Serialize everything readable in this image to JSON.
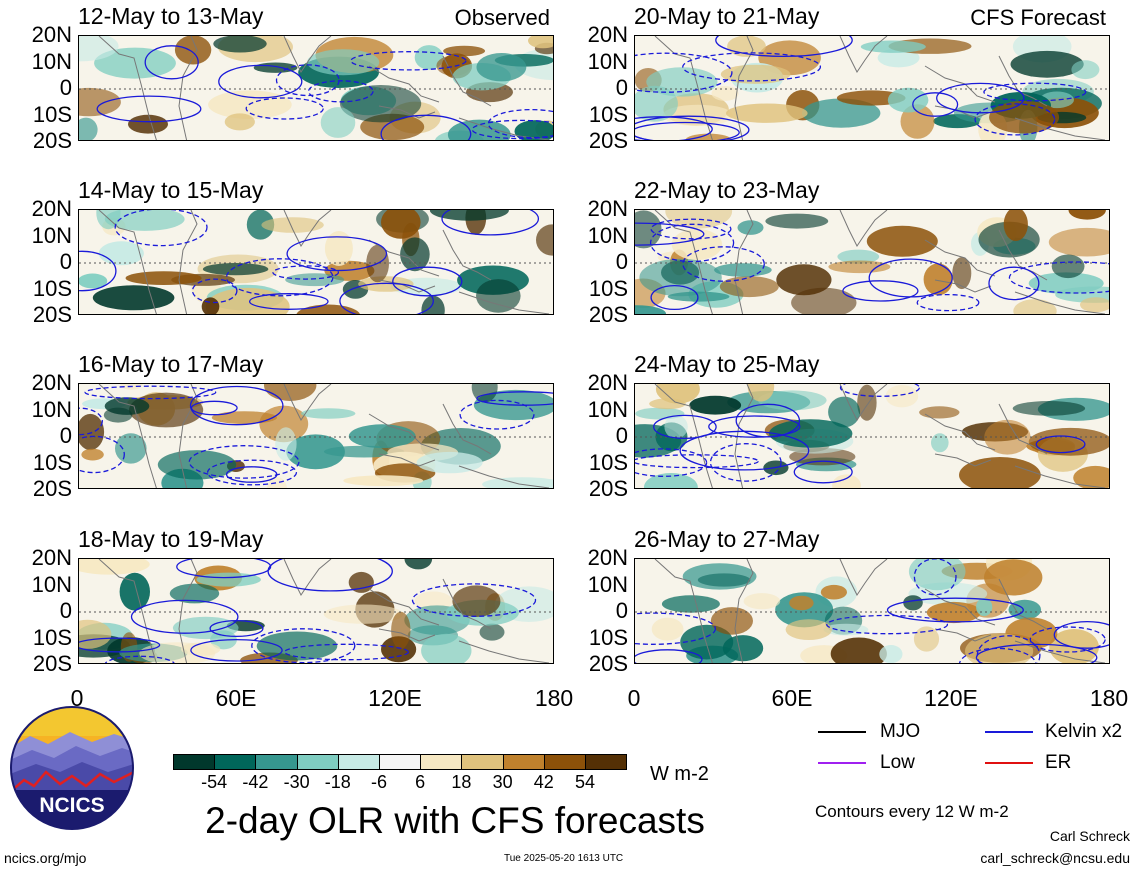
{
  "panels": [
    {
      "title": "12-May to 13-May",
      "tag": "Observed",
      "seed": 1
    },
    {
      "title": "14-May to 15-May",
      "tag": "",
      "seed": 2
    },
    {
      "title": "16-May to 17-May",
      "tag": "",
      "seed": 3
    },
    {
      "title": "18-May to 19-May",
      "tag": "",
      "seed": 4
    },
    {
      "title": "20-May to 21-May",
      "tag": "CFS Forecast",
      "seed": 5
    },
    {
      "title": "22-May to 23-May",
      "tag": "",
      "seed": 6
    },
    {
      "title": "24-May to 25-May",
      "tag": "",
      "seed": 7
    },
    {
      "title": "26-May to 27-May",
      "tag": "",
      "seed": 8
    }
  ],
  "lat_labels": [
    "20N",
    "10N",
    "0",
    "10S",
    "20S"
  ],
  "lon_labels": [
    "0",
    "60E",
    "120E",
    "180"
  ],
  "colorbar": {
    "colors": [
      "#01382c",
      "#00665a",
      "#36978f",
      "#7fcdc1",
      "#c7eae5",
      "#f5f5f5",
      "#f6e8c3",
      "#dfc27d",
      "#bf812d",
      "#8c5109",
      "#543005"
    ],
    "ticks": [
      "-54",
      "-42",
      "-30",
      "-18",
      "-6",
      "6",
      "18",
      "30",
      "42",
      "54"
    ],
    "units": "W m-2"
  },
  "legend": {
    "mjo": {
      "label": "MJO",
      "color": "#000000"
    },
    "kelvin": {
      "label": "Kelvin x2",
      "color": "#1a1ad9"
    },
    "low": {
      "label": "Low",
      "color": "#a020f0"
    },
    "er": {
      "label": "ER",
      "color": "#e01010"
    },
    "contours_note": "Contours every 12 W m-2"
  },
  "main_title": "2-day OLR with CFS forecasts",
  "logo_text": "NCICS",
  "footer": {
    "left": "ncics.org/mjo",
    "center": "Tue 2025-05-20 1613 UTC",
    "author": "Carl Schreck",
    "email": "carl_schreck@ncsu.edu"
  }
}
